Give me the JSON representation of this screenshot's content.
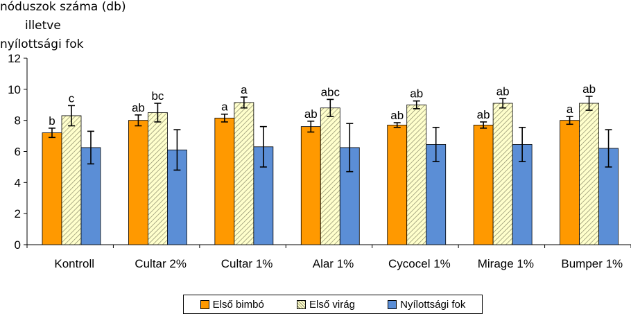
{
  "chart_data": {
    "type": "bar",
    "ylabel_lines": [
      "nóduszok száma (db)",
      "illetve",
      "nyílottsági fok"
    ],
    "xlabel": "",
    "ylim": [
      0,
      12
    ],
    "yticks": [
      0,
      2,
      4,
      6,
      8,
      10,
      12
    ],
    "grid": false,
    "legend_position": "bottom",
    "categories": [
      "Kontroll",
      "Cultar 2%",
      "Cultar 1%",
      "Alar 1%",
      "Cycocel 1%",
      "Mirage 1%",
      "Bumper 1%"
    ],
    "series": [
      {
        "name": "Első bimbó",
        "color": "#FF9900",
        "pattern": "solid",
        "values": [
          7.2,
          8.0,
          8.15,
          7.6,
          7.7,
          7.7,
          8.0
        ],
        "errors": [
          0.3,
          0.35,
          0.25,
          0.35,
          0.15,
          0.2,
          0.25
        ],
        "labels": [
          "b",
          "ab",
          "a",
          "ab",
          "ab",
          "ab",
          "a"
        ]
      },
      {
        "name": "Első virág",
        "color": "#FFFFCC",
        "pattern": "hatched",
        "values": [
          8.3,
          8.5,
          9.15,
          8.8,
          9.0,
          9.1,
          9.1
        ],
        "errors": [
          0.65,
          0.6,
          0.35,
          0.55,
          0.25,
          0.3,
          0.45
        ],
        "labels": [
          "c",
          "bc",
          "a",
          "abc",
          "ab",
          "ab",
          "ab"
        ]
      },
      {
        "name": "Nyílottsági fok",
        "color": "#5B8ED6",
        "pattern": "solid",
        "values": [
          6.25,
          6.1,
          6.3,
          6.25,
          6.45,
          6.45,
          6.2
        ],
        "errors": [
          1.05,
          1.3,
          1.3,
          1.55,
          1.1,
          1.1,
          1.2
        ],
        "labels": [
          "",
          "",
          "",
          "",
          "",
          "",
          ""
        ]
      }
    ]
  }
}
